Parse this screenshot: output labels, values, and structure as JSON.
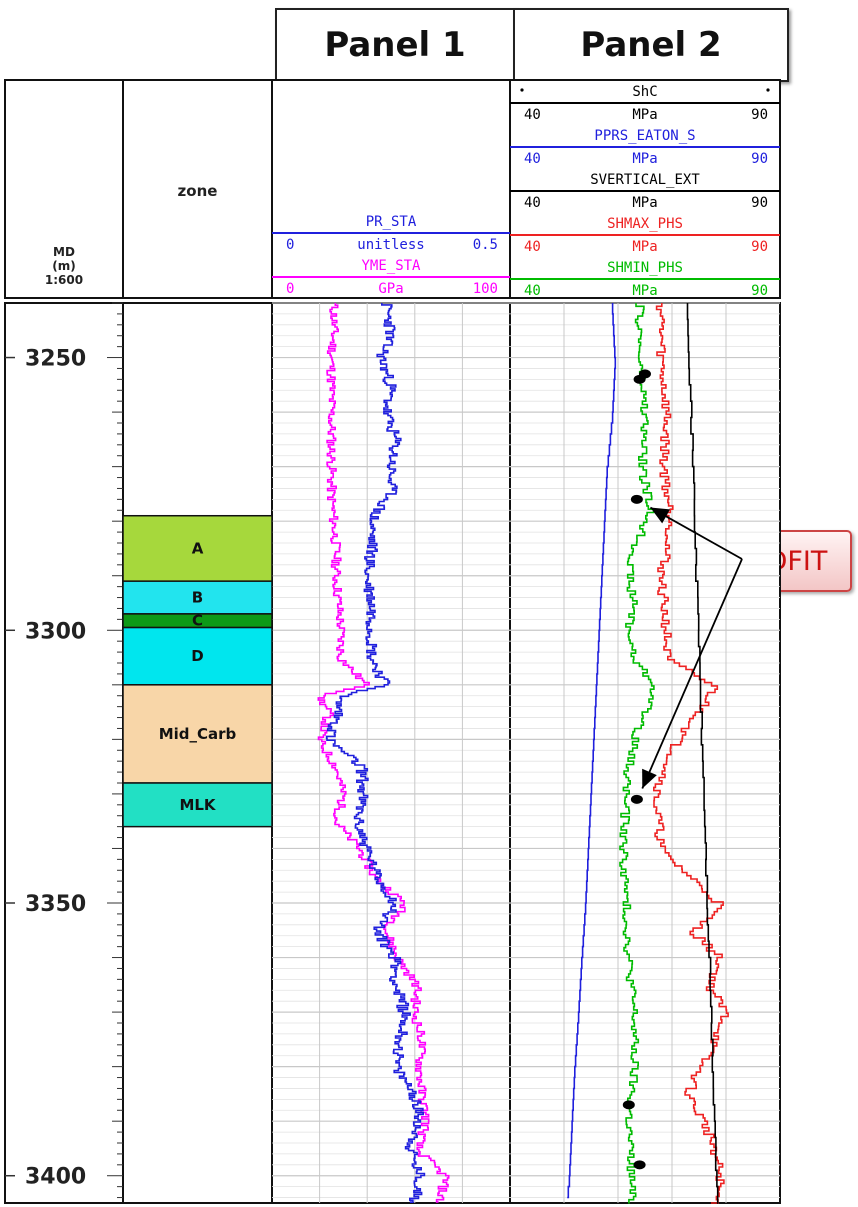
{
  "panels": {
    "panel1_title": "Panel 1",
    "panel2_title": "Panel 2"
  },
  "header": {
    "md_label": [
      "MD",
      "(m)",
      "1:600"
    ],
    "zone_label": "zone",
    "panel1_tracks": [
      {
        "name": "PR_STA",
        "min": "0",
        "unit": "unitless",
        "max": "0.5",
        "color": "#2020dd"
      },
      {
        "name": "YME_STA",
        "min": "0",
        "unit": "GPa",
        "max": "100",
        "color": "#ff00ff"
      }
    ],
    "panel2_tracks": [
      {
        "name": "ShC",
        "min": "40",
        "unit": "MPa",
        "max": "90",
        "color": "#000000"
      },
      {
        "name": "PPRS_EATON_S",
        "min": "40",
        "unit": "MPa",
        "max": "90",
        "color": "#2020dd"
      },
      {
        "name": "SVERTICAL_EXT",
        "min": "40",
        "unit": "MPa",
        "max": "90",
        "color": "#000000"
      },
      {
        "name": "SHMAX_PHS",
        "min": "40",
        "unit": "MPa",
        "max": "90",
        "color": "#ee2222"
      },
      {
        "name": "SHMIN_PHS",
        "min": "40",
        "unit": "MPa",
        "max": "90",
        "color": "#00bb00"
      }
    ]
  },
  "annotation": {
    "label": "DFIT"
  },
  "chart_data": {
    "type": "line",
    "title": "",
    "y_axis": {
      "label": "MD (m)",
      "scale": "1:600",
      "ticks": [
        3250,
        3300,
        3350,
        3400
      ],
      "range": [
        3240,
        3405
      ],
      "inverted": true
    },
    "zones": [
      {
        "name": "A",
        "top": 3279,
        "bottom": 3291,
        "color": "#a6d83c"
      },
      {
        "name": "B",
        "top": 3291,
        "bottom": 3297,
        "color": "#22e4ee"
      },
      {
        "name": "C",
        "top": 3297,
        "bottom": 3299.5,
        "color": "#0d9a16"
      },
      {
        "name": "D",
        "top": 3299.5,
        "bottom": 3310,
        "color": "#00e6ee"
      },
      {
        "name": "Mid_Carb",
        "top": 3310,
        "bottom": 3328,
        "color": "#f8d6a8"
      },
      {
        "name": "MLK",
        "top": 3328,
        "bottom": 3336,
        "color": "#22e0c4"
      }
    ],
    "panel1_series": [
      {
        "name": "PR_STA",
        "unit": "unitless",
        "range": [
          0,
          0.5
        ],
        "color": "#2020dd",
        "points": [
          [
            3240,
            0.24
          ],
          [
            3245,
            0.25
          ],
          [
            3250,
            0.23
          ],
          [
            3255,
            0.25
          ],
          [
            3260,
            0.24
          ],
          [
            3265,
            0.26
          ],
          [
            3270,
            0.25
          ],
          [
            3275,
            0.25
          ],
          [
            3278,
            0.22
          ],
          [
            3280,
            0.21
          ],
          [
            3285,
            0.21
          ],
          [
            3290,
            0.2
          ],
          [
            3295,
            0.21
          ],
          [
            3300,
            0.21
          ],
          [
            3305,
            0.21
          ],
          [
            3310,
            0.24
          ],
          [
            3312,
            0.14
          ],
          [
            3315,
            0.14
          ],
          [
            3320,
            0.12
          ],
          [
            3325,
            0.19
          ],
          [
            3330,
            0.19
          ],
          [
            3335,
            0.18
          ],
          [
            3340,
            0.2
          ],
          [
            3345,
            0.22
          ],
          [
            3350,
            0.26
          ],
          [
            3355,
            0.22
          ],
          [
            3360,
            0.26
          ],
          [
            3365,
            0.26
          ],
          [
            3370,
            0.28
          ],
          [
            3375,
            0.27
          ],
          [
            3380,
            0.26
          ],
          [
            3385,
            0.3
          ],
          [
            3390,
            0.31
          ],
          [
            3395,
            0.29
          ],
          [
            3400,
            0.31
          ],
          [
            3405,
            0.3
          ]
        ]
      },
      {
        "name": "YME_STA",
        "unit": "GPa",
        "range": [
          0,
          100
        ],
        "color": "#ff00ff",
        "points": [
          [
            3240,
            26
          ],
          [
            3245,
            26
          ],
          [
            3250,
            25
          ],
          [
            3255,
            25
          ],
          [
            3260,
            25
          ],
          [
            3265,
            25
          ],
          [
            3270,
            25
          ],
          [
            3275,
            25
          ],
          [
            3280,
            26
          ],
          [
            3285,
            27
          ],
          [
            3290,
            27
          ],
          [
            3295,
            28
          ],
          [
            3300,
            29
          ],
          [
            3305,
            29
          ],
          [
            3310,
            40
          ],
          [
            3312,
            20
          ],
          [
            3315,
            24
          ],
          [
            3320,
            20
          ],
          [
            3325,
            27
          ],
          [
            3330,
            30
          ],
          [
            3335,
            27
          ],
          [
            3340,
            37
          ],
          [
            3345,
            43
          ],
          [
            3350,
            56
          ],
          [
            3355,
            48
          ],
          [
            3360,
            53
          ],
          [
            3365,
            61
          ],
          [
            3370,
            60
          ],
          [
            3375,
            63
          ],
          [
            3380,
            62
          ],
          [
            3385,
            63
          ],
          [
            3390,
            65
          ],
          [
            3395,
            61
          ],
          [
            3400,
            73
          ],
          [
            3405,
            70
          ]
        ]
      }
    ],
    "panel2_series": [
      {
        "name": "PPRS_EATON_S",
        "unit": "MPa",
        "range": [
          40,
          90
        ],
        "color": "#2020dd",
        "points": [
          [
            3240,
            59
          ],
          [
            3250,
            59.5
          ],
          [
            3260,
            59
          ],
          [
            3270,
            58
          ],
          [
            3280,
            57.5
          ],
          [
            3290,
            57
          ],
          [
            3300,
            56.5
          ],
          [
            3310,
            56
          ],
          [
            3320,
            55.5
          ],
          [
            3330,
            55
          ],
          [
            3340,
            54.5
          ],
          [
            3350,
            54
          ],
          [
            3360,
            53.3
          ],
          [
            3370,
            52.7
          ],
          [
            3380,
            52
          ],
          [
            3390,
            51.5
          ],
          [
            3400,
            51
          ],
          [
            3405,
            50.5
          ]
        ]
      },
      {
        "name": "SHMIN_PHS",
        "unit": "MPa",
        "range": [
          40,
          90
        ],
        "color": "#00bb00",
        "points": [
          [
            3240,
            64
          ],
          [
            3250,
            64
          ],
          [
            3260,
            65
          ],
          [
            3270,
            64.5
          ],
          [
            3278,
            66
          ],
          [
            3285,
            63
          ],
          [
            3290,
            62
          ],
          [
            3295,
            63
          ],
          [
            3300,
            62
          ],
          [
            3305,
            63
          ],
          [
            3310,
            67
          ],
          [
            3315,
            65
          ],
          [
            3320,
            63
          ],
          [
            3325,
            62
          ],
          [
            3330,
            61.5
          ],
          [
            3340,
            61
          ],
          [
            3350,
            61.5
          ],
          [
            3360,
            62
          ],
          [
            3370,
            63
          ],
          [
            3380,
            63
          ],
          [
            3390,
            62
          ],
          [
            3400,
            62.5
          ],
          [
            3405,
            62.5
          ]
        ]
      },
      {
        "name": "SHMAX_PHS",
        "unit": "MPa",
        "range": [
          40,
          90
        ],
        "color": "#ee2222",
        "points": [
          [
            3240,
            68
          ],
          [
            3250,
            68
          ],
          [
            3260,
            69
          ],
          [
            3270,
            68.5
          ],
          [
            3280,
            70
          ],
          [
            3285,
            69
          ],
          [
            3290,
            68
          ],
          [
            3300,
            69
          ],
          [
            3305,
            69
          ],
          [
            3310,
            78
          ],
          [
            3315,
            75
          ],
          [
            3320,
            71
          ],
          [
            3325,
            69
          ],
          [
            3330,
            67
          ],
          [
            3340,
            68
          ],
          [
            3350,
            79
          ],
          [
            3355,
            74
          ],
          [
            3360,
            79
          ],
          [
            3365,
            77
          ],
          [
            3370,
            80
          ],
          [
            3375,
            78
          ],
          [
            3380,
            75
          ],
          [
            3385,
            73
          ],
          [
            3390,
            76
          ],
          [
            3395,
            78
          ],
          [
            3400,
            79
          ],
          [
            3405,
            78
          ]
        ]
      },
      {
        "name": "SVERTICAL_EXT",
        "unit": "MPa",
        "range": [
          40,
          90
        ],
        "color": "#000000",
        "points": [
          [
            3240,
            73
          ],
          [
            3250,
            73.3
          ],
          [
            3260,
            73.6
          ],
          [
            3270,
            74
          ],
          [
            3280,
            74.3
          ],
          [
            3290,
            74.6
          ],
          [
            3300,
            75
          ],
          [
            3310,
            75.3
          ],
          [
            3320,
            75.6
          ],
          [
            3330,
            76
          ],
          [
            3340,
            76.3
          ],
          [
            3350,
            76.6
          ],
          [
            3360,
            77
          ],
          [
            3370,
            77.3
          ],
          [
            3380,
            77.6
          ],
          [
            3390,
            78
          ],
          [
            3400,
            78.3
          ],
          [
            3405,
            78.5
          ]
        ]
      }
    ],
    "dfit_points": [
      {
        "md": 3253,
        "value": 65
      },
      {
        "md": 3254,
        "value": 64
      },
      {
        "md": 3276,
        "value": 63.5
      },
      {
        "md": 3331,
        "value": 63.5
      },
      {
        "md": 3387,
        "value": 62
      },
      {
        "md": 3398,
        "value": 64
      }
    ]
  }
}
